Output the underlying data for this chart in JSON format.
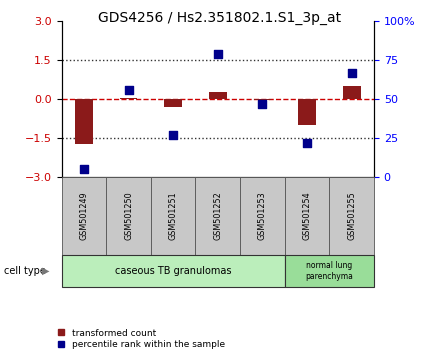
{
  "title": "GDS4256 / Hs2.351802.1.S1_3p_at",
  "samples": [
    "GSM501249",
    "GSM501250",
    "GSM501251",
    "GSM501252",
    "GSM501253",
    "GSM501254",
    "GSM501255"
  ],
  "red_values": [
    -1.72,
    0.05,
    -0.3,
    0.27,
    -0.05,
    -1.0,
    0.5
  ],
  "blue_percentiles": [
    5,
    56,
    27,
    79,
    47,
    22,
    67
  ],
  "ylim_left": [
    -3,
    3
  ],
  "ylim_right": [
    0,
    100
  ],
  "left_yticks": [
    -3,
    -1.5,
    0,
    1.5,
    3
  ],
  "right_yticks": [
    0,
    25,
    50,
    75,
    100
  ],
  "right_yticklabels": [
    "0",
    "25",
    "50",
    "75",
    "100%"
  ],
  "group1_samples": 5,
  "group2_samples": 2,
  "group1_label": "caseous TB granulomas",
  "group2_label": "normal lung\nparenchyma",
  "cell_type_label": "cell type",
  "legend_red": "transformed count",
  "legend_blue": "percentile rank within the sample",
  "bar_color": "#8B1A1A",
  "dot_color": "#00008B",
  "group1_bg": "#BBEEBB",
  "group2_bg": "#99DD99",
  "sample_box_bg": "#C8C8C8",
  "zero_line_color": "#CC0000",
  "dotted_line_color": "#333333",
  "title_fontsize": 10,
  "bar_width": 0.4,
  "dot_size": 35
}
